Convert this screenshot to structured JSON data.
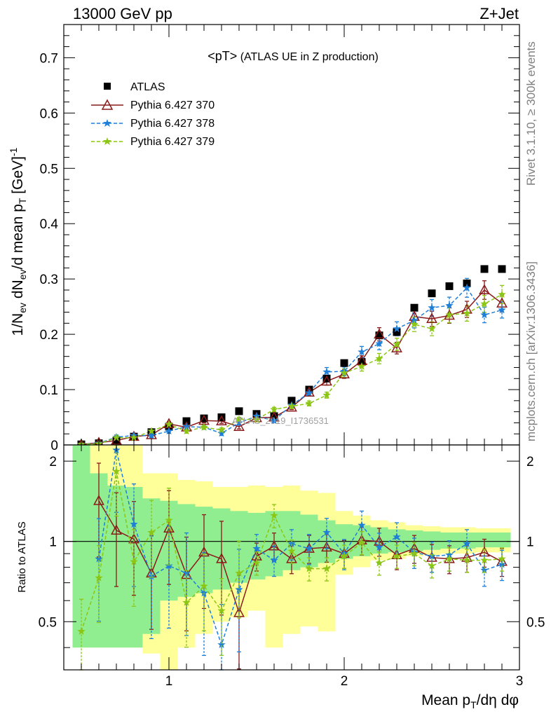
{
  "header": {
    "left": "13000 GeV pp",
    "right": "Z+Jet"
  },
  "side_text": {
    "rivet": "Rivet 3.1.10, ≥ 300k events",
    "url": "mcplots.cern.ch [arXiv:1306.3436]"
  },
  "watermark": "ATLAS_2019_I1736531",
  "colors": {
    "atlas": "#000000",
    "p370": "#8b1a1a",
    "p378": "#1e7fd9",
    "p379": "#8cc614",
    "band_inner": "#90ee90",
    "band_outer": "#ffff9a"
  },
  "chart_data": [
    {
      "type": "scatter",
      "title_main": "<pT>",
      "title_sub": "(ATLAS UE in Z production)",
      "ylabel_parts": [
        "1/N",
        "ev",
        " dN",
        "ev",
        "/d mean p",
        "T",
        " [GeV]",
        "-1"
      ],
      "xlim": [
        0.4,
        3.0
      ],
      "ylim": [
        0,
        0.76
      ],
      "yticks": [
        0,
        0.1,
        0.2,
        0.3,
        0.4,
        0.5,
        0.6,
        0.7
      ],
      "ytick_labels": [
        "0",
        "0.1",
        "0.2",
        "0.3",
        "0.4",
        "0.5",
        "0.6",
        "0.7"
      ],
      "x": [
        0.5,
        0.6,
        0.7,
        0.8,
        0.9,
        1.0,
        1.1,
        1.2,
        1.3,
        1.4,
        1.5,
        1.6,
        1.7,
        1.8,
        1.9,
        2.0,
        2.1,
        2.2,
        2.3,
        2.4,
        2.5,
        2.6,
        2.7,
        2.8,
        2.9
      ],
      "legend_position": "top-left",
      "series": [
        {
          "name": "ATLAS",
          "marker": "square",
          "values": [
            0.001,
            0.003,
            0.007,
            0.015,
            0.023,
            0.033,
            0.043,
            0.048,
            0.05,
            0.061,
            0.056,
            0.052,
            0.08,
            0.1,
            0.12,
            0.148,
            0.15,
            0.198,
            0.204,
            0.248,
            0.274,
            0.287,
            0.292,
            0.318,
            0.318
          ]
        },
        {
          "name": "Pythia 6.427 370",
          "marker": "triangle",
          "values": [
            0.001,
            0.004,
            0.008,
            0.015,
            0.018,
            0.038,
            0.032,
            0.044,
            0.043,
            0.033,
            0.049,
            0.05,
            0.068,
            0.095,
            0.115,
            0.128,
            0.152,
            0.2,
            0.175,
            0.232,
            0.228,
            0.234,
            0.245,
            0.28,
            0.256
          ]
        },
        {
          "name": "Pythia 6.427 378",
          "marker": "star",
          "values": [
            0.001,
            0.003,
            0.014,
            0.017,
            0.017,
            0.025,
            0.033,
            0.032,
            0.021,
            0.04,
            0.052,
            0.044,
            0.072,
            0.094,
            0.132,
            0.133,
            0.168,
            0.183,
            0.21,
            0.225,
            0.248,
            0.252,
            0.284,
            0.235,
            0.244
          ]
        },
        {
          "name": "Pythia 6.427 379",
          "marker": "star",
          "dashed": true,
          "values": [
            0.001,
            0.002,
            0.013,
            0.013,
            0.025,
            0.037,
            0.025,
            0.032,
            0.027,
            0.046,
            0.046,
            0.064,
            0.07,
            0.075,
            0.09,
            0.13,
            0.142,
            0.156,
            0.182,
            0.218,
            0.21,
            0.235,
            0.238,
            0.255,
            0.272
          ]
        }
      ]
    },
    {
      "type": "scatter",
      "ylabel": "Ratio to ATLAS",
      "xlabel_parts": [
        "Mean p",
        "T",
        "/dη dφ"
      ],
      "xlim": [
        0.4,
        3.0
      ],
      "ylim": [
        0.33,
        2.3
      ],
      "yticks": [
        0.5,
        1,
        2
      ],
      "ytick_labels": [
        "0.5",
        "1",
        "2"
      ],
      "xticks": [
        1,
        2,
        3
      ],
      "xtick_labels": [
        "1",
        "2",
        "3"
      ],
      "x": [
        0.5,
        0.6,
        0.7,
        0.8,
        0.9,
        1.0,
        1.1,
        1.2,
        1.3,
        1.4,
        1.5,
        1.6,
        1.7,
        1.8,
        1.9,
        2.0,
        2.1,
        2.2,
        2.3,
        2.4,
        2.5,
        2.6,
        2.7,
        2.8,
        2.9
      ],
      "band_inner": [
        [
          0.4,
          2.3
        ],
        [
          0.4,
          1.8
        ],
        [
          0.4,
          1.62
        ],
        [
          0.4,
          1.6
        ],
        [
          0.45,
          1.45
        ],
        [
          0.6,
          1.42
        ],
        [
          0.62,
          1.38
        ],
        [
          0.64,
          1.35
        ],
        [
          0.66,
          1.33
        ],
        [
          0.7,
          1.3
        ],
        [
          0.72,
          1.28
        ],
        [
          0.74,
          1.3
        ],
        [
          0.78,
          1.3
        ],
        [
          0.8,
          1.26
        ],
        [
          0.83,
          1.2
        ],
        [
          0.86,
          1.16
        ],
        [
          0.88,
          1.15
        ],
        [
          0.9,
          1.13
        ],
        [
          0.91,
          1.11
        ],
        [
          0.92,
          1.1
        ],
        [
          0.93,
          1.09
        ],
        [
          0.94,
          1.08
        ],
        [
          0.94,
          1.08
        ],
        [
          0.95,
          1.08
        ],
        [
          0.95,
          1.08
        ]
      ],
      "band_outer": [
        [
          0.4,
          2.3
        ],
        [
          0.4,
          2.3
        ],
        [
          0.4,
          2.3
        ],
        [
          0.4,
          2.3
        ],
        [
          0.38,
          1.8
        ],
        [
          0.33,
          1.8
        ],
        [
          0.4,
          1.7
        ],
        [
          0.45,
          1.68
        ],
        [
          0.5,
          1.6
        ],
        [
          0.52,
          1.6
        ],
        [
          0.55,
          1.62
        ],
        [
          0.4,
          1.6
        ],
        [
          0.45,
          1.62
        ],
        [
          0.48,
          1.55
        ],
        [
          0.46,
          1.52
        ],
        [
          0.75,
          1.3
        ],
        [
          0.8,
          1.25
        ],
        [
          0.85,
          1.2
        ],
        [
          0.86,
          1.18
        ],
        [
          0.88,
          1.15
        ],
        [
          0.89,
          1.14
        ],
        [
          0.9,
          1.13
        ],
        [
          0.9,
          1.13
        ],
        [
          0.91,
          1.12
        ],
        [
          0.91,
          1.12
        ]
      ],
      "series": [
        {
          "name": "Pythia 6.427 370",
          "values": [
            null,
            1.42,
            1.1,
            1.02,
            0.76,
            1.12,
            0.75,
            0.91,
            0.86,
            0.54,
            0.88,
            0.96,
            0.86,
            0.94,
            0.95,
            0.9,
            1.01,
            1.0,
            0.89,
            0.94,
            0.87,
            0.86,
            0.87,
            0.91,
            0.84
          ]
        },
        {
          "name": "Pythia 6.427 378",
          "values": [
            null,
            0.86,
            2.2,
            1.16,
            0.74,
            0.81,
            0.76,
            0.64,
            0.41,
            0.66,
            0.94,
            0.85,
            0.98,
            0.94,
            1.08,
            0.9,
            1.15,
            0.95,
            1.04,
            0.91,
            0.88,
            0.89,
            0.98,
            0.78,
            0.82
          ]
        },
        {
          "name": "Pythia 6.427 379",
          "values": [
            0.46,
            0.73,
            1.83,
            0.84,
            1.08,
            1.2,
            0.59,
            0.68,
            0.55,
            0.76,
            0.83,
            1.25,
            0.92,
            0.79,
            0.79,
            0.88,
            0.99,
            0.83,
            0.88,
            0.9,
            0.81,
            0.86,
            0.85,
            0.85,
            0.86
          ]
        }
      ]
    }
  ]
}
